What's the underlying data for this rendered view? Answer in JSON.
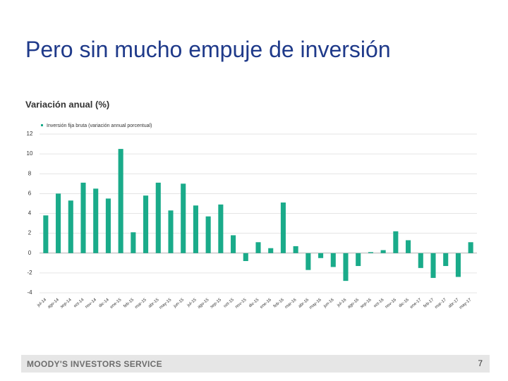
{
  "header": {
    "title": "Pero sin mucho empuje de inversión"
  },
  "footer": {
    "brand": "MOODY'S INVESTORS SERVICE",
    "page": "7"
  },
  "chart_data": {
    "type": "bar",
    "title": "Variación anual (%)",
    "categories": [
      "jul-14",
      "ago-14",
      "sep-14",
      "oct-14",
      "nov-14",
      "dic-14",
      "ene-15",
      "feb-15",
      "mar-15",
      "abr-15",
      "may-15",
      "jun-15",
      "jul-15",
      "ago-15",
      "sep-15",
      "oct-15",
      "nov-15",
      "dic-15",
      "ene-16",
      "feb-16",
      "mar-16",
      "abr-16",
      "may-16",
      "jun-16",
      "jul-16",
      "ago-16",
      "sep-16",
      "oct-16",
      "nov-16",
      "dic-16",
      "ene-17",
      "feb-17",
      "mar-17",
      "abr-17",
      "may-17"
    ],
    "series": [
      {
        "name": "Inversión fija bruta (variación annual porcentual)",
        "color": "#1aab8a",
        "values": [
          3.8,
          6.0,
          5.3,
          7.1,
          6.5,
          5.5,
          10.5,
          2.1,
          5.8,
          7.1,
          4.3,
          7.0,
          4.8,
          3.7,
          4.9,
          1.8,
          -0.8,
          1.1,
          0.5,
          5.1,
          0.7,
          -1.7,
          -0.5,
          -1.4,
          -2.8,
          -1.3,
          0.1,
          0.3,
          2.2,
          1.3,
          -1.5,
          -2.5,
          -1.3,
          -2.4,
          1.1
        ]
      }
    ],
    "ylim": [
      -4,
      12
    ],
    "yticks": [
      -4,
      -2,
      0,
      2,
      4,
      6,
      8,
      10,
      12
    ],
    "grid": true
  }
}
